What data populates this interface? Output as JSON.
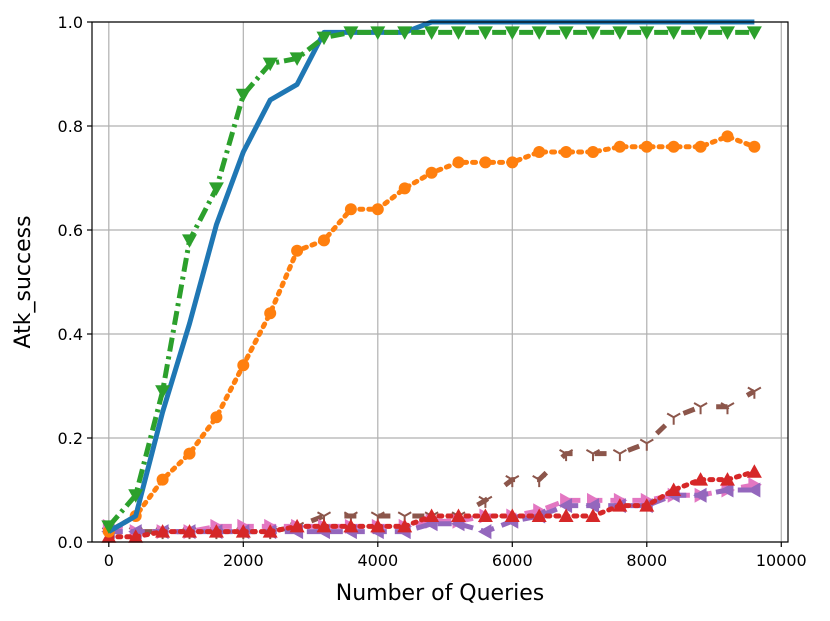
{
  "chart_data": {
    "type": "line",
    "title": "",
    "xlabel": "Number of Queries",
    "ylabel": "Atk_success",
    "xlim": [
      -250,
      10100
    ],
    "ylim": [
      0,
      1
    ],
    "xticks": [
      0,
      2000,
      4000,
      6000,
      8000,
      10000
    ],
    "yticks": [
      0.0,
      0.2,
      0.4,
      0.6,
      0.8,
      1.0
    ],
    "xtick_labels": [
      "0",
      "2000",
      "4000",
      "6000",
      "8000",
      "10000"
    ],
    "ytick_labels": [
      "0.0",
      "0.2",
      "0.4",
      "0.6",
      "0.8",
      "1.0"
    ],
    "grid": true,
    "x": [
      0,
      400,
      800,
      1200,
      1600,
      2000,
      2400,
      2800,
      3200,
      3600,
      4000,
      4400,
      4800,
      5200,
      5600,
      6000,
      6400,
      6800,
      7200,
      7600,
      8000,
      8400,
      8800,
      9200,
      9600
    ],
    "series": [
      {
        "name": "blue",
        "color": "#1f77b4",
        "style": "solid",
        "marker": "none",
        "values": [
          0.02,
          0.05,
          0.25,
          0.42,
          0.61,
          0.75,
          0.85,
          0.88,
          0.98,
          0.98,
          0.98,
          0.98,
          1.0,
          1.0,
          1.0,
          1.0,
          1.0,
          1.0,
          1.0,
          1.0,
          1.0,
          1.0,
          1.0,
          1.0,
          1.0
        ]
      },
      {
        "name": "orange",
        "color": "#ff7f0e",
        "style": "dotted",
        "marker": "circle",
        "values": [
          0.02,
          0.05,
          0.12,
          0.17,
          0.24,
          0.34,
          0.44,
          0.56,
          0.58,
          0.64,
          0.64,
          0.68,
          0.71,
          0.73,
          0.73,
          0.73,
          0.75,
          0.75,
          0.75,
          0.76,
          0.76,
          0.76,
          0.76,
          0.78,
          0.76
        ]
      },
      {
        "name": "green",
        "color": "#2ca02c",
        "style": "dashdot",
        "marker": "triangle-down",
        "values": [
          0.03,
          0.09,
          0.29,
          0.58,
          0.68,
          0.86,
          0.92,
          0.93,
          0.97,
          0.98,
          0.98,
          0.98,
          0.98,
          0.98,
          0.98,
          0.98,
          0.98,
          0.98,
          0.98,
          0.98,
          0.98,
          0.98,
          0.98,
          0.98,
          0.98
        ]
      },
      {
        "name": "red",
        "color": "#d62728",
        "style": "dotted",
        "marker": "triangle-up",
        "values": [
          0.01,
          0.01,
          0.02,
          0.02,
          0.02,
          0.02,
          0.02,
          0.03,
          0.03,
          0.03,
          0.03,
          0.03,
          0.05,
          0.05,
          0.05,
          0.05,
          0.05,
          0.05,
          0.05,
          0.07,
          0.07,
          0.1,
          0.12,
          0.12,
          0.135
        ]
      },
      {
        "name": "purple",
        "color": "#9467bd",
        "style": "dashed",
        "marker": "triangle-left",
        "values": [
          0.02,
          0.02,
          0.02,
          0.02,
          0.02,
          0.02,
          0.02,
          0.02,
          0.02,
          0.02,
          0.02,
          0.02,
          0.035,
          0.035,
          0.02,
          0.04,
          0.05,
          0.07,
          0.07,
          0.07,
          0.07,
          0.09,
          0.09,
          0.1,
          0.1
        ]
      },
      {
        "name": "brown",
        "color": "#8c564b",
        "style": "loosely-dashed",
        "marker": "tri-down",
        "values": [
          0.02,
          0.02,
          0.02,
          0.02,
          0.02,
          0.02,
          0.02,
          0.03,
          0.05,
          0.05,
          0.05,
          0.05,
          0.05,
          0.05,
          0.08,
          0.12,
          0.12,
          0.17,
          0.17,
          0.17,
          0.19,
          0.24,
          0.26,
          0.26,
          0.29
        ]
      },
      {
        "name": "pink",
        "color": "#e377c2",
        "style": "dashed",
        "marker": "triangle-right",
        "values": [
          0.03,
          0.02,
          0.02,
          0.02,
          0.03,
          0.03,
          0.03,
          0.03,
          0.03,
          0.03,
          0.03,
          0.03,
          0.04,
          0.04,
          0.05,
          0.05,
          0.06,
          0.08,
          0.08,
          0.08,
          0.08,
          0.09,
          0.09,
          0.1,
          0.11
        ]
      }
    ]
  }
}
